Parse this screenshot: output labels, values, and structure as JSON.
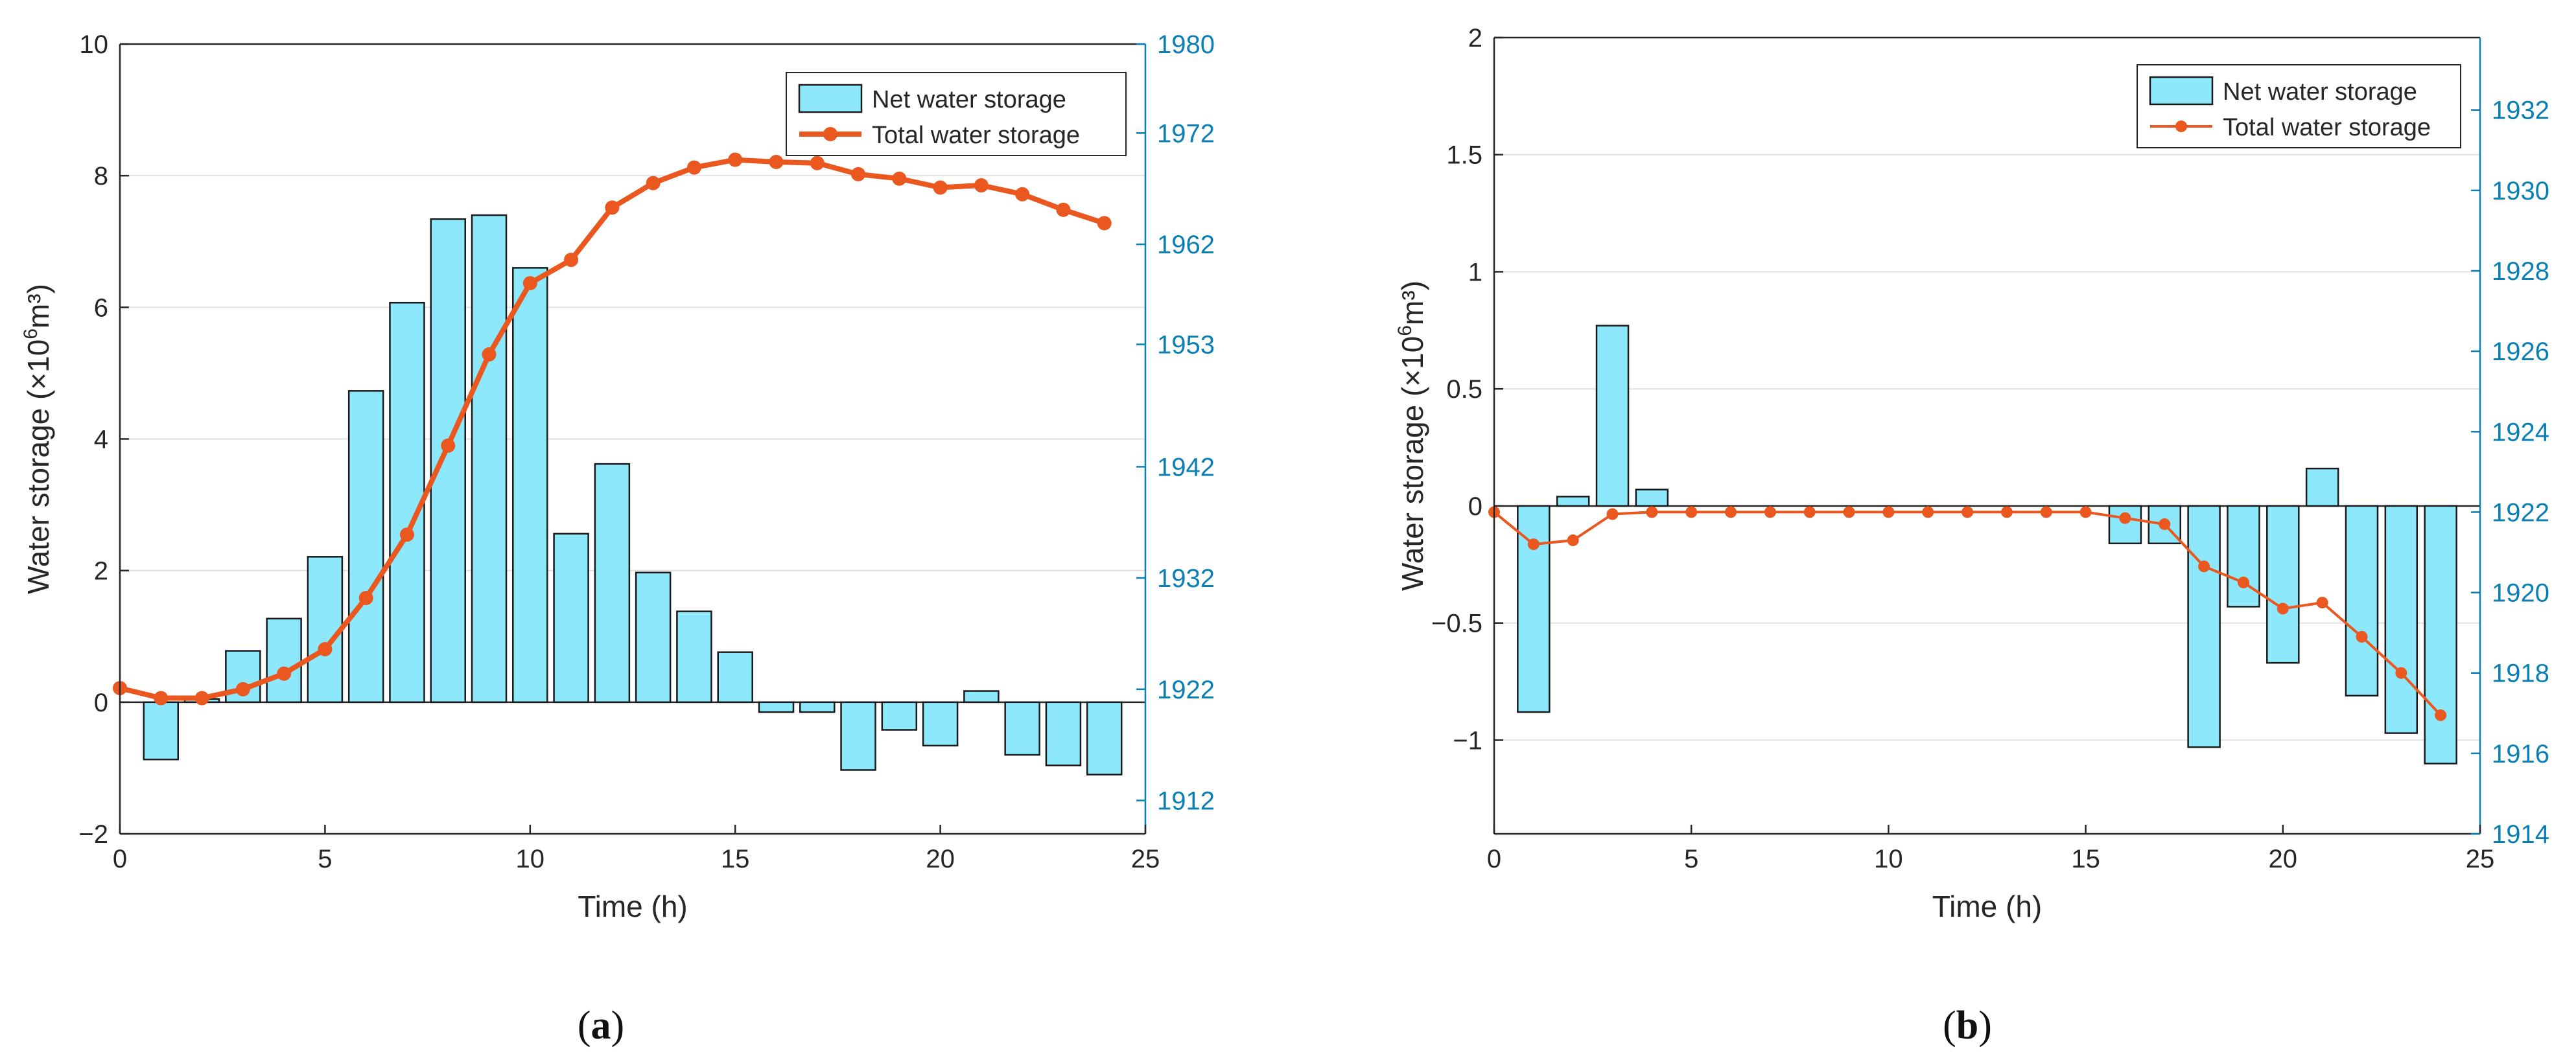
{
  "colors": {
    "bar_fill": "#8ce8fa",
    "bar_stroke": "#1a1a1a",
    "line": "#ea5820",
    "right_axis": "#0a7fb5",
    "axis": "#262626",
    "grid": "#e1e1e1"
  },
  "chart_data": [
    {
      "panel_label": "a",
      "type": "bar+line",
      "xlabel": "Time (h)",
      "ylabel_prefix": "Water storage (×10",
      "ylabel_exp": "6",
      "ylabel_suffix": "m³)",
      "xlim": [
        0,
        25
      ],
      "xticks": [
        0,
        5,
        10,
        15,
        20,
        25
      ],
      "ylim_left": [
        -2,
        10
      ],
      "yticks_left": [
        -2,
        0,
        2,
        4,
        6,
        8,
        10
      ],
      "ylim_right": [
        1909,
        1980
      ],
      "yticks_right": [
        1912,
        1922,
        1932,
        1942,
        1953,
        1962,
        1972,
        1980
      ],
      "legend_position": "top-right",
      "grid": "horizontal",
      "series": [
        {
          "name": "Net water storage",
          "kind": "bar",
          "axis": "left",
          "x": [
            1,
            2,
            3,
            4,
            5,
            6,
            7,
            8,
            9,
            10,
            11,
            12,
            13,
            14,
            15,
            16,
            17,
            18,
            19,
            20,
            21,
            22,
            23,
            24
          ],
          "values": [
            -0.87,
            0.05,
            0.78,
            1.27,
            2.21,
            4.73,
            6.07,
            7.34,
            7.4,
            6.6,
            2.56,
            3.62,
            1.97,
            1.38,
            0.76,
            -0.15,
            -0.15,
            -1.03,
            -0.42,
            -0.66,
            0.17,
            -0.8,
            -0.96,
            -1.1
          ]
        },
        {
          "name": "Total water storage",
          "kind": "line",
          "axis": "right",
          "x": [
            0,
            1,
            2,
            3,
            4,
            5,
            6,
            7,
            8,
            9,
            10,
            11,
            12,
            13,
            14,
            15,
            16,
            17,
            18,
            19,
            20,
            21,
            22,
            23,
            24
          ],
          "values": [
            1922.1,
            1921.2,
            1921.2,
            1922.0,
            1923.4,
            1925.6,
            1930.2,
            1935.9,
            1943.9,
            1952.1,
            1958.5,
            1960.6,
            1965.3,
            1967.5,
            1968.9,
            1969.6,
            1969.4,
            1969.3,
            1968.3,
            1967.9,
            1967.1,
            1967.3,
            1966.5,
            1965.1,
            1963.9
          ]
        }
      ]
    },
    {
      "panel_label": "b",
      "type": "bar+line",
      "xlabel": "Time (h)",
      "ylabel_prefix": "Water storage (×10",
      "ylabel_exp": "6",
      "ylabel_suffix": "m³)",
      "xlim": [
        0,
        25
      ],
      "xticks": [
        0,
        5,
        10,
        15,
        20,
        25
      ],
      "ylim_left": [
        -1.4,
        2
      ],
      "yticks_left": [
        -1,
        -0.5,
        0,
        0.5,
        1,
        1.5,
        2
      ],
      "ytick_labels_left": [
        "−1",
        "−0.5",
        "0",
        "0.5",
        "1",
        "1.5",
        "2"
      ],
      "ylim_right": [
        1914,
        1933.8
      ],
      "yticks_right": [
        1914,
        1916,
        1918,
        1920,
        1922,
        1924,
        1926,
        1928,
        1930,
        1932
      ],
      "legend_position": "top-right",
      "grid": "horizontal",
      "series": [
        {
          "name": "Net water storage",
          "kind": "bar",
          "axis": "left",
          "x": [
            1,
            2,
            3,
            4,
            5,
            6,
            7,
            8,
            9,
            10,
            11,
            12,
            13,
            14,
            15,
            16,
            17,
            18,
            19,
            20,
            21,
            22,
            23,
            24
          ],
          "values": [
            -0.88,
            0.04,
            0.77,
            0.07,
            0,
            0,
            0,
            0,
            0,
            0,
            0,
            0,
            0,
            0,
            0,
            -0.16,
            -0.16,
            -1.03,
            -0.43,
            -0.67,
            0.16,
            -0.81,
            -0.97,
            -1.1
          ]
        },
        {
          "name": "Total water storage",
          "kind": "line",
          "axis": "right",
          "x": [
            0,
            1,
            2,
            3,
            4,
            5,
            6,
            7,
            8,
            9,
            10,
            11,
            12,
            13,
            14,
            15,
            16,
            17,
            18,
            19,
            20,
            21,
            22,
            23,
            24
          ],
          "values": [
            1922.0,
            1921.2,
            1921.3,
            1921.95,
            1922.0,
            1922.0,
            1922.0,
            1922.0,
            1922.0,
            1922.0,
            1922.0,
            1922.0,
            1922.0,
            1922.0,
            1922.0,
            1922.0,
            1921.85,
            1921.7,
            1920.65,
            1920.25,
            1919.6,
            1919.75,
            1918.9,
            1918.0,
            1916.95
          ]
        }
      ]
    }
  ]
}
